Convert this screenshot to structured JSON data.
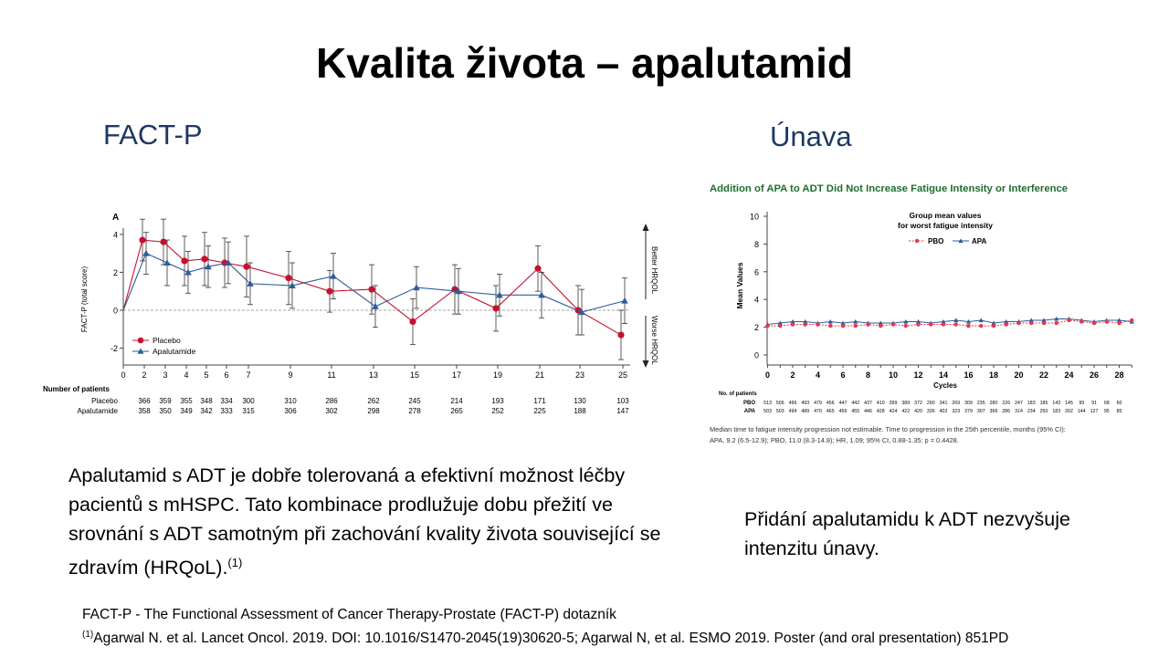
{
  "slide": {
    "title": "Kvalita života – apalutamid",
    "left_heading": "FACT-P",
    "right_heading": "Únava",
    "left_text": "Apalutamid s ADT je dobře tolerovaná a efektivní možnost léčby pacientů s mHSPC. Tato kombinace prodlužuje dobu přežití ve srovnání s ADT samotným při zachování kvality života související se zdravím (HRQoL).",
    "left_text_ref": "(1)",
    "right_text": "Přidání apalutamidu k ADT nezvyšuje intenzitu únavy.",
    "footnote1": "FACT-P - The Functional Assessment of Cancer Therapy-Prostate (FACT-P) dotazník",
    "footnote2_ref": "(1)",
    "footnote2": "Agarwal N. et al. Lancet Oncol. 2019. DOI: 10.1016/S1470-2045(19)30620-5; Agarwal N, et al. ESMO 2019. Poster (and oral presentation) 851PD"
  },
  "chart_data": [
    {
      "type": "line",
      "panel_label": "A",
      "ylabel": "FACT-P (total score)",
      "ylim": [
        -3,
        4.8
      ],
      "yticks": [
        -2,
        0,
        2,
        4
      ],
      "xticks": [
        0,
        2,
        3,
        4,
        5,
        6,
        7,
        9,
        11,
        13,
        15,
        17,
        19,
        21,
        23,
        25
      ],
      "better_label": "Better HRQOL",
      "worse_label": "Worse HRQOL",
      "colors": {
        "placebo": "#c8102e",
        "apalutamide": "#2e5c9a"
      },
      "series": [
        {
          "name": "Placebo",
          "x": [
            0,
            2,
            3,
            4,
            5,
            6,
            7,
            9,
            11,
            13,
            15,
            17,
            19,
            21,
            23,
            25
          ],
          "y": [
            0,
            3.7,
            3.6,
            2.6,
            2.7,
            2.5,
            2.3,
            1.7,
            1.0,
            1.1,
            -0.6,
            1.1,
            0.1,
            2.2,
            0.0,
            -1.3
          ],
          "err": [
            0,
            1.1,
            1.2,
            1.3,
            1.4,
            1.3,
            1.6,
            1.4,
            1.1,
            1.3,
            1.2,
            1.3,
            1.2,
            1.2,
            1.3,
            1.3
          ]
        },
        {
          "name": "Apalutamide",
          "x": [
            0,
            2,
            3,
            4,
            5,
            6,
            7,
            9,
            11,
            13,
            15,
            17,
            19,
            21,
            23,
            25
          ],
          "y": [
            0,
            3.0,
            2.5,
            2.0,
            2.3,
            2.5,
            1.4,
            1.3,
            1.8,
            0.2,
            1.2,
            1.0,
            0.8,
            0.8,
            -0.1,
            0.5
          ],
          "err": [
            0,
            1.1,
            1.2,
            1.1,
            1.1,
            1.1,
            1.1,
            1.2,
            1.2,
            1.1,
            1.1,
            1.2,
            1.1,
            1.2,
            1.2,
            1.2
          ]
        }
      ],
      "patients": {
        "heading": "Number of patients",
        "rows": [
          {
            "name": "Placebo",
            "values": [
              "366",
              "359",
              "355",
              "348",
              "334",
              "300",
              "310",
              "286",
              "262",
              "245",
              "214",
              "193",
              "171",
              "130",
              "103"
            ]
          },
          {
            "name": "Apalutamide",
            "values": [
              "358",
              "350",
              "349",
              "342",
              "333",
              "315",
              "306",
              "302",
              "298",
              "278",
              "265",
              "252",
              "225",
              "188",
              "147"
            ]
          }
        ]
      }
    },
    {
      "type": "line",
      "title": "Addition of APA to ADT Did Not Increase Fatigue Intensity or Interference",
      "legend_title": "Group mean values\nfor worst fatigue intensity",
      "xlabel": "Cycles",
      "ylabel": "Mean Values",
      "ylim": [
        0,
        10
      ],
      "yticks": [
        0,
        2,
        4,
        6,
        8,
        10
      ],
      "xticks": [
        0,
        2,
        4,
        6,
        8,
        10,
        12,
        14,
        16,
        18,
        20,
        22,
        24,
        26,
        28
      ],
      "colors": {
        "PBO": "#e8364a",
        "APA": "#2e5c9a"
      },
      "series": [
        {
          "name": "PBO",
          "x": [
            0,
            1,
            2,
            3,
            4,
            5,
            6,
            7,
            8,
            9,
            10,
            11,
            12,
            13,
            14,
            15,
            16,
            17,
            18,
            19,
            20,
            21,
            22,
            23,
            24,
            25,
            26,
            27,
            28,
            29
          ],
          "y": [
            2.1,
            2.1,
            2.2,
            2.2,
            2.2,
            2.1,
            2.1,
            2.1,
            2.2,
            2.1,
            2.2,
            2.1,
            2.2,
            2.2,
            2.2,
            2.2,
            2.1,
            2.1,
            2.1,
            2.2,
            2.3,
            2.3,
            2.3,
            2.3,
            2.5,
            2.4,
            2.3,
            2.4,
            2.3,
            2.5
          ]
        },
        {
          "name": "APA",
          "x": [
            0,
            1,
            2,
            3,
            4,
            5,
            6,
            7,
            8,
            9,
            10,
            11,
            12,
            13,
            14,
            15,
            16,
            17,
            18,
            19,
            20,
            21,
            22,
            23,
            24,
            25,
            26,
            27,
            28,
            29
          ],
          "y": [
            2.2,
            2.3,
            2.4,
            2.4,
            2.3,
            2.4,
            2.3,
            2.4,
            2.3,
            2.3,
            2.3,
            2.4,
            2.4,
            2.3,
            2.4,
            2.5,
            2.4,
            2.5,
            2.3,
            2.4,
            2.4,
            2.5,
            2.5,
            2.6,
            2.6,
            2.5,
            2.4,
            2.5,
            2.5,
            2.4
          ]
        }
      ],
      "patients": {
        "heading": "No. of patients",
        "rows": [
          {
            "name": "PBO",
            "values": [
              "513",
              "506",
              "496",
              "493",
              "479",
              "456",
              "447",
              "442",
              "437",
              "410",
              "399",
              "389",
              "372",
              "290",
              "341",
              "269",
              "309",
              "235",
              "280",
              "226",
              "247",
              "183",
              "185",
              "143",
              "145",
              "99",
              "91",
              "68",
              "60"
            ]
          },
          {
            "name": "APA",
            "values": [
              "503",
              "503",
              "494",
              "489",
              "470",
              "465",
              "456",
              "455",
              "446",
              "428",
              "424",
              "422",
              "420",
              "336",
              "402",
              "323",
              "379",
              "307",
              "366",
              "286",
              "314",
              "234",
              "250",
              "183",
              "202",
              "144",
              "127",
              "95",
              "85"
            ]
          }
        ]
      },
      "note": "Median time to fatigue intensity progression not estimable. Time to progression in the 25th percentile, months (95% CI): APA, 9.2 (6.5-12.9); PBO, 11.0 (8.3-14.8); HR, 1.09; 95% CI, 0.88-1.35; p = 0.4428."
    }
  ]
}
